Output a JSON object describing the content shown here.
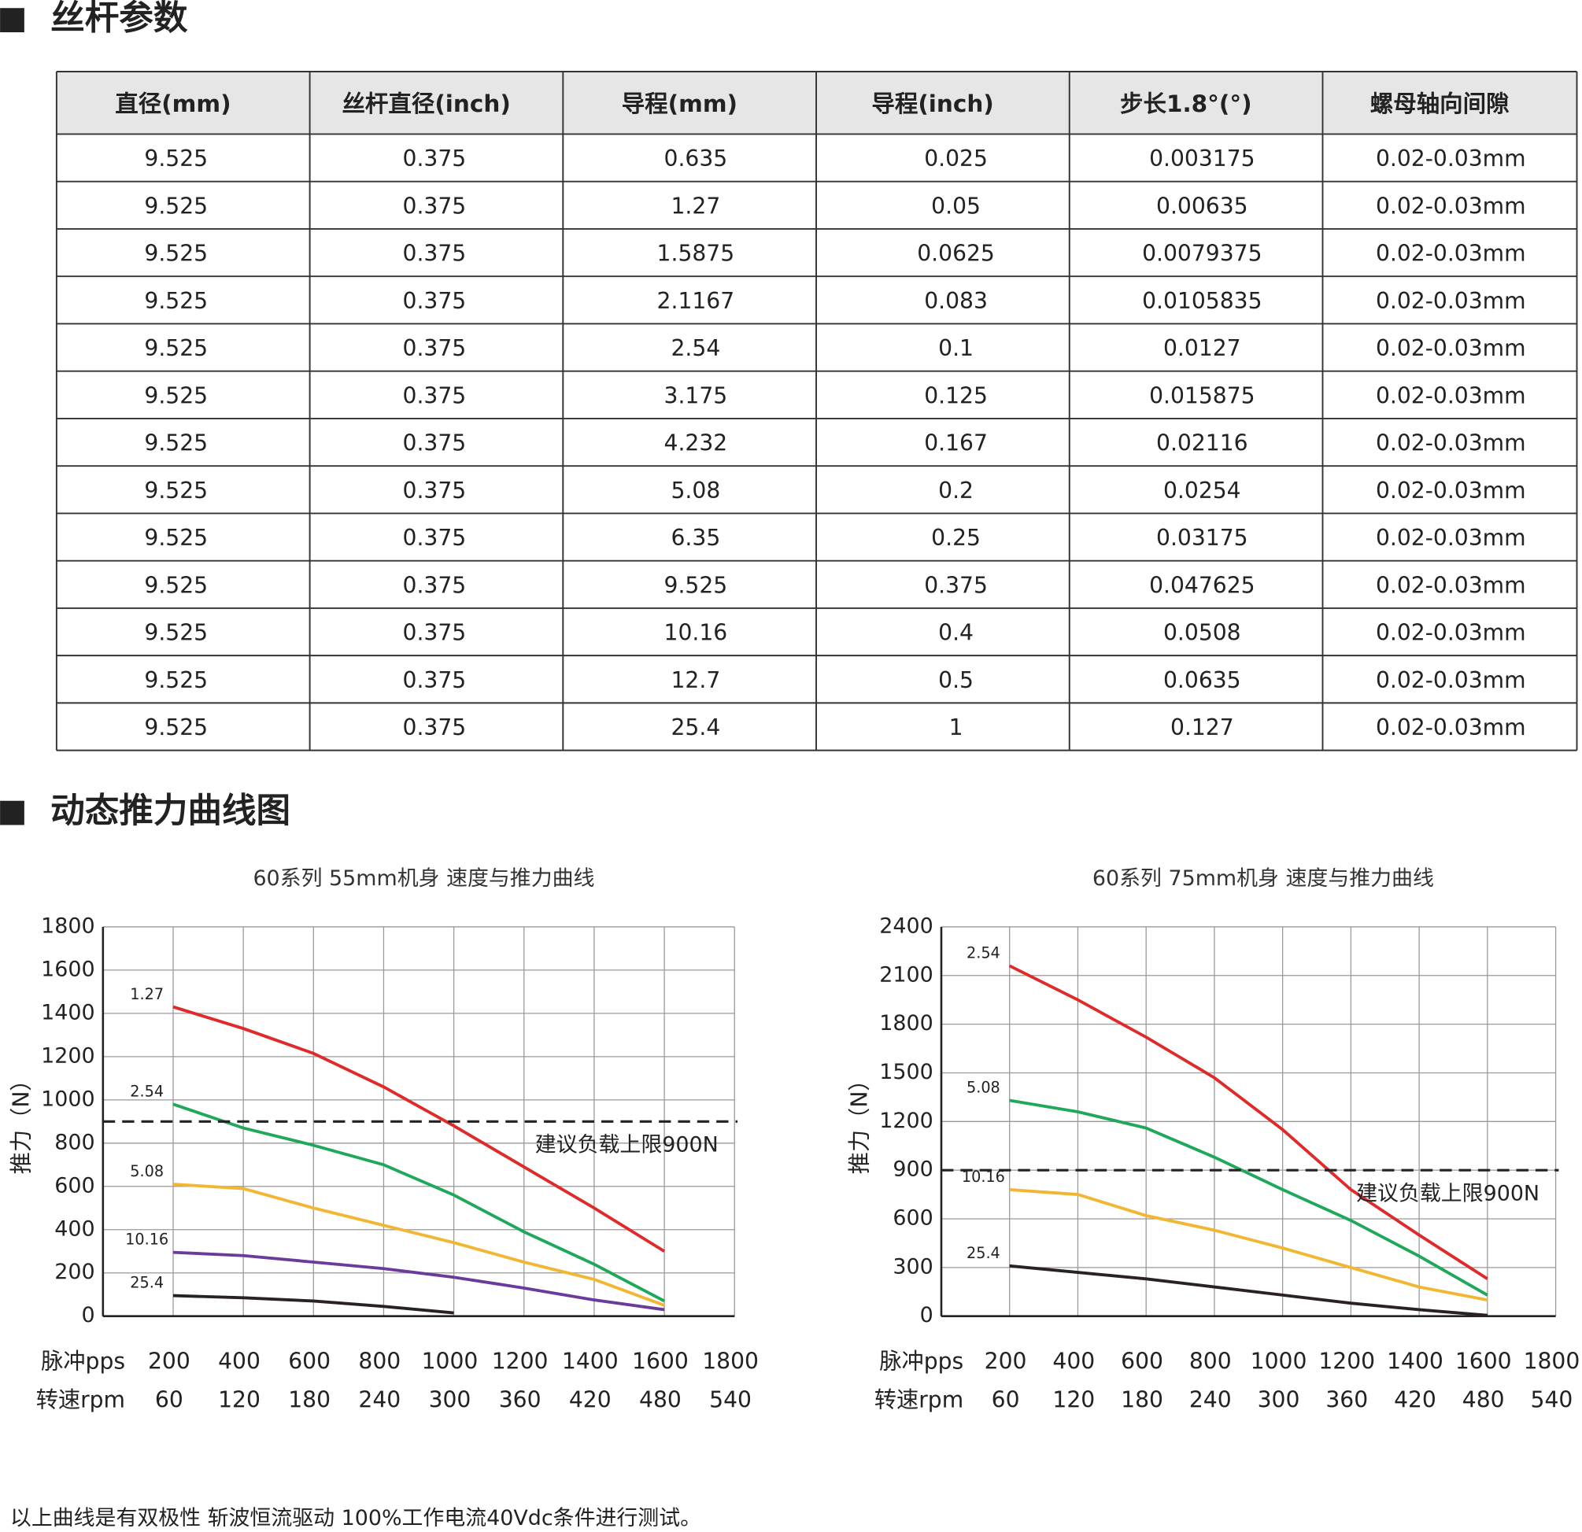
{
  "sections": [
    {
      "title": "丝杆参数"
    },
    {
      "title": "动态推力曲线图"
    }
  ],
  "table": {
    "header": [
      "直径(mm)",
      "丝杆直径(inch)",
      "导程(mm)",
      "导程(inch)",
      "步长1.8°(°)",
      "螺母轴向间隙"
    ],
    "rows": [
      [
        "9.525",
        "0.375",
        "0.635",
        "0.025",
        "0.003175",
        "0.02-0.03mm"
      ],
      [
        "9.525",
        "0.375",
        "1.27",
        "0.05",
        "0.00635",
        "0.02-0.03mm"
      ],
      [
        "9.525",
        "0.375",
        "1.5875",
        "0.0625",
        "0.0079375",
        "0.02-0.03mm"
      ],
      [
        "9.525",
        "0.375",
        "2.1167",
        "0.083",
        "0.0105835",
        "0.02-0.03mm"
      ],
      [
        "9.525",
        "0.375",
        "2.54",
        "0.1",
        "0.0127",
        "0.02-0.03mm"
      ],
      [
        "9.525",
        "0.375",
        "3.175",
        "0.125",
        "0.015875",
        "0.02-0.03mm"
      ],
      [
        "9.525",
        "0.375",
        "4.232",
        "0.167",
        "0.02116",
        "0.02-0.03mm"
      ],
      [
        "9.525",
        "0.375",
        "5.08",
        "0.2",
        "0.0254",
        "0.02-0.03mm"
      ],
      [
        "9.525",
        "0.375",
        "6.35",
        "0.25",
        "0.03175",
        "0.02-0.03mm"
      ],
      [
        "9.525",
        "0.375",
        "9.525",
        "0.375",
        "0.047625",
        "0.02-0.03mm"
      ],
      [
        "9.525",
        "0.375",
        "10.16",
        "0.4",
        "0.0508",
        "0.02-0.03mm"
      ],
      [
        "9.525",
        "0.375",
        "12.7",
        "0.5",
        "0.0635",
        "0.02-0.03mm"
      ],
      [
        "9.525",
        "0.375",
        "25.4",
        "1",
        "0.127",
        "0.02-0.03mm"
      ]
    ]
  },
  "chart_data": [
    {
      "type": "line",
      "title": "60系列 55mm机身 速度与推力曲线",
      "y_label": "推力（N）",
      "x_row_label": "脉冲pps",
      "x2_row_label": "转速rpm",
      "xlim": [
        0,
        1800
      ],
      "xticks": [
        200,
        400,
        600,
        800,
        1000,
        1200,
        1400,
        1600,
        1800
      ],
      "x2lim": [
        0,
        540
      ],
      "x2ticks": [
        60,
        120,
        180,
        240,
        300,
        360,
        420,
        480,
        540
      ],
      "ylim": [
        0,
        1800
      ],
      "yticks": [
        0,
        200,
        400,
        600,
        800,
        1000,
        1200,
        1400,
        1600,
        1800
      ],
      "grid": true,
      "x": [
        200,
        400,
        600,
        800,
        1000,
        1200,
        1400,
        1600
      ],
      "series": [
        {
          "name": "1.27",
          "color": "#e02a2a",
          "values": [
            1430,
            1330,
            1215,
            1060,
            880,
            690,
            500,
            300
          ]
        },
        {
          "name": "2.54",
          "color": "#1fa85a",
          "values": [
            980,
            870,
            790,
            700,
            560,
            390,
            240,
            70
          ]
        },
        {
          "name": "5.08",
          "color": "#f2b632",
          "values": [
            610,
            590,
            500,
            420,
            340,
            250,
            170,
            50
          ]
        },
        {
          "name": "10.16",
          "color": "#6a3a9c",
          "values": [
            295,
            280,
            250,
            220,
            180,
            130,
            75,
            30
          ]
        },
        {
          "name": "25.4",
          "color": "#2a2222",
          "values": [
            95,
            85,
            70,
            45,
            15,
            null,
            null,
            null
          ]
        }
      ],
      "reference": {
        "value": 900,
        "label": "建议负载上限900N"
      }
    },
    {
      "type": "line",
      "title": "60系列 75mm机身 速度与推力曲线",
      "y_label": "推力（N）",
      "x_row_label": "脉冲pps",
      "x2_row_label": "转速rpm",
      "xlim": [
        0,
        1800
      ],
      "xticks": [
        200,
        400,
        600,
        800,
        1000,
        1200,
        1400,
        1600,
        1800
      ],
      "x2lim": [
        0,
        540
      ],
      "x2ticks": [
        60,
        120,
        180,
        240,
        300,
        360,
        420,
        480,
        540
      ],
      "ylim": [
        0,
        2400
      ],
      "yticks": [
        0,
        300,
        600,
        900,
        1200,
        1500,
        1800,
        2100,
        2400
      ],
      "grid": true,
      "x": [
        200,
        400,
        600,
        800,
        1000,
        1200,
        1400,
        1600
      ],
      "series": [
        {
          "name": "2.54",
          "color": "#e02a2a",
          "values": [
            2160,
            1950,
            1720,
            1470,
            1150,
            780,
            500,
            230
          ]
        },
        {
          "name": "5.08",
          "color": "#1fa85a",
          "values": [
            1330,
            1260,
            1160,
            980,
            780,
            590,
            370,
            130
          ]
        },
        {
          "name": "10.16",
          "color": "#f2b632",
          "values": [
            780,
            750,
            620,
            530,
            420,
            300,
            180,
            100
          ]
        },
        {
          "name": "25.4",
          "color": "#2a2222",
          "values": [
            310,
            270,
            230,
            180,
            130,
            80,
            40,
            5
          ]
        }
      ],
      "reference": {
        "value": 900,
        "label": "建议负载上限900N"
      }
    }
  ],
  "footnote": "以上曲线是有双极性 斩波恒流驱动 100%工作电流40Vdc条件进行测试。"
}
